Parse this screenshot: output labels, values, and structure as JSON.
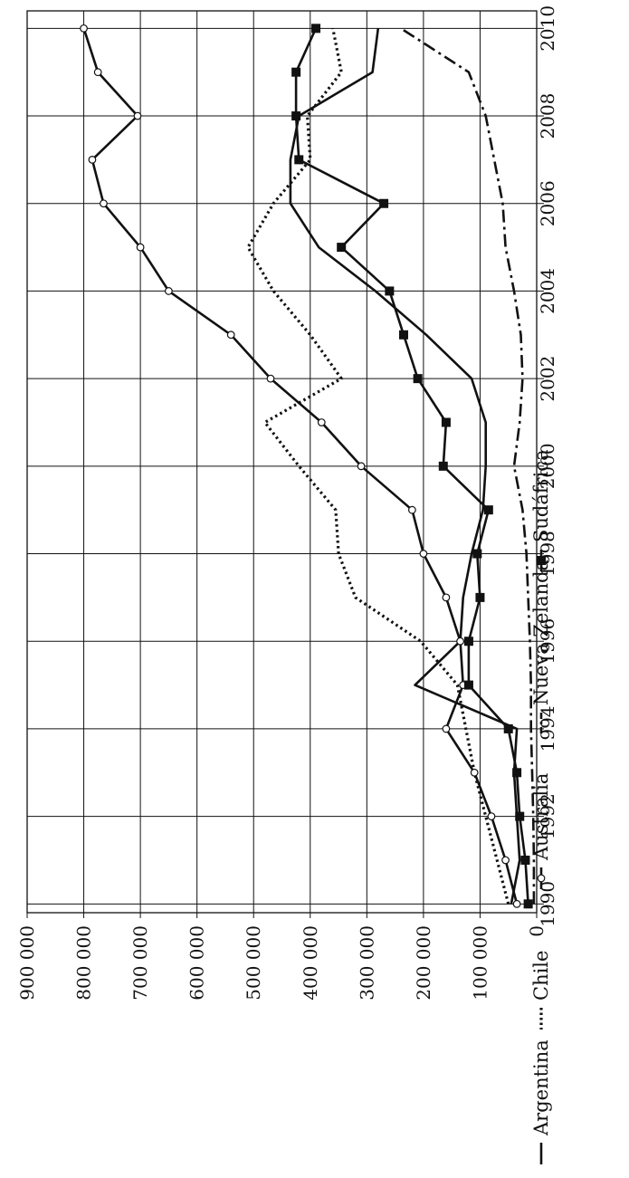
{
  "chart_data": {
    "type": "line",
    "orientation": "rotated-90-clockwise",
    "title": "",
    "xlabel": "",
    "ylabel": "",
    "x": [
      1990,
      1991,
      1992,
      1993,
      1994,
      1995,
      1996,
      1997,
      1998,
      1999,
      2000,
      2001,
      2002,
      2003,
      2004,
      2005,
      2006,
      2007,
      2008,
      2009,
      2010
    ],
    "xlim": [
      1989.8,
      2010.4
    ],
    "ylim": [
      0,
      900000
    ],
    "xticks": [
      1990,
      1992,
      1994,
      1996,
      1998,
      2000,
      2002,
      2004,
      2006,
      2008,
      2010
    ],
    "yticks": [
      0,
      100000,
      200000,
      300000,
      400000,
      500000,
      600000,
      700000,
      800000,
      900000
    ],
    "xtick_labels": [
      "1990",
      "1992",
      "1994",
      "1996",
      "1998",
      "2000",
      "2002",
      "2004",
      "2006",
      "2008",
      "2010"
    ],
    "ytick_labels": [
      "0",
      "100 000",
      "200 000",
      "300 000",
      "400 000",
      "500 000",
      "600 000",
      "700 000",
      "800 000",
      "900 000"
    ],
    "grid": true,
    "legend_position": "bottom",
    "series": [
      {
        "name": "Argentina",
        "style": "solid",
        "marker": "none",
        "values": [
          45000,
          30000,
          35000,
          40000,
          35000,
          215000,
          135000,
          130000,
          115000,
          95000,
          90000,
          90000,
          115000,
          195000,
          285000,
          385000,
          435000,
          435000,
          420000,
          290000,
          280000
        ]
      },
      {
        "name": "Chile",
        "style": "dotted",
        "marker": "none",
        "values": [
          50000,
          70000,
          90000,
          110000,
          125000,
          140000,
          205000,
          320000,
          350000,
          355000,
          420000,
          480000,
          345000,
          400000,
          465000,
          510000,
          465000,
          400000,
          405000,
          345000,
          360000
        ]
      },
      {
        "name": "Australia",
        "style": "solid",
        "marker": "open-circle",
        "values": [
          35000,
          55000,
          80000,
          110000,
          160000,
          130000,
          135000,
          160000,
          200000,
          220000,
          310000,
          380000,
          470000,
          540000,
          650000,
          700000,
          765000,
          785000,
          705000,
          775000,
          800000
        ]
      },
      {
        "name": "Nueva Zelanda",
        "style": "dash-dot",
        "marker": "none",
        "values": [
          5000,
          5000,
          6000,
          8000,
          10000,
          10000,
          12000,
          15000,
          18000,
          25000,
          40000,
          30000,
          25000,
          28000,
          40000,
          55000,
          60000,
          75000,
          90000,
          120000,
          240000
        ]
      },
      {
        "name": "Sudáfrica",
        "style": "solid",
        "marker": "filled-square",
        "values": [
          15000,
          20000,
          30000,
          35000,
          50000,
          120000,
          120000,
          100000,
          105000,
          85000,
          165000,
          160000,
          210000,
          235000,
          260000,
          345000,
          270000,
          420000,
          425000,
          425000,
          390000
        ]
      }
    ]
  }
}
